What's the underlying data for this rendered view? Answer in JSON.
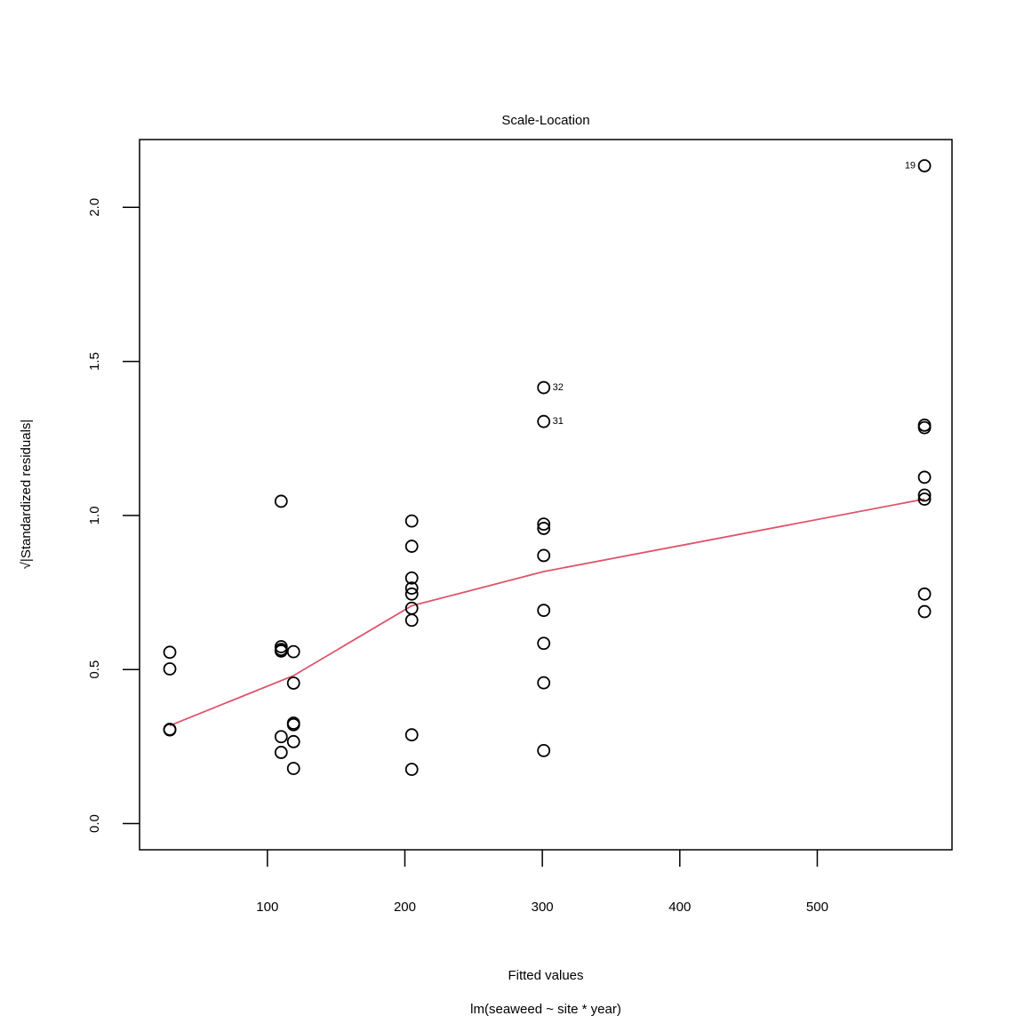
{
  "chart_data": {
    "type": "scatter",
    "title": "Scale-Location",
    "xlabel": "Fitted values",
    "ylabel": "√|Standardized residuals|",
    "ylabel_sqrt": "√",
    "ylabel_text": "|Standardized residuals|",
    "subtitle": "lm(seaweed ~ site * year)",
    "xlim": [
      7,
      598
    ],
    "ylim": [
      -0.085,
      2.22
    ],
    "xticks": [
      100,
      200,
      300,
      400,
      500
    ],
    "yticks": [
      0.0,
      0.5,
      1.0,
      1.5,
      2.0
    ],
    "xtick_labels": [
      "100",
      "200",
      "300",
      "400",
      "500"
    ],
    "ytick_labels": [
      "0.0",
      "0.5",
      "1.0",
      "1.5",
      "2.0"
    ],
    "grid": false,
    "smooth_color": "#DF536B",
    "points": [
      {
        "x": 29,
        "y": 0.556
      },
      {
        "x": 29,
        "y": 0.502
      },
      {
        "x": 29,
        "y": 0.306
      },
      {
        "x": 29,
        "y": 0.304
      },
      {
        "x": 110,
        "y": 1.046
      },
      {
        "x": 110,
        "y": 0.574
      },
      {
        "x": 110,
        "y": 0.565
      },
      {
        "x": 110,
        "y": 0.56
      },
      {
        "x": 110,
        "y": 0.282
      },
      {
        "x": 110,
        "y": 0.231
      },
      {
        "x": 119,
        "y": 0.558
      },
      {
        "x": 119,
        "y": 0.456
      },
      {
        "x": 119,
        "y": 0.326
      },
      {
        "x": 119,
        "y": 0.321
      },
      {
        "x": 119,
        "y": 0.266
      },
      {
        "x": 119,
        "y": 0.179
      },
      {
        "x": 205,
        "y": 0.982
      },
      {
        "x": 205,
        "y": 0.9
      },
      {
        "x": 205,
        "y": 0.797
      },
      {
        "x": 205,
        "y": 0.764
      },
      {
        "x": 205,
        "y": 0.745
      },
      {
        "x": 205,
        "y": 0.699
      },
      {
        "x": 205,
        "y": 0.66
      },
      {
        "x": 205,
        "y": 0.288
      },
      {
        "x": 205,
        "y": 0.176
      },
      {
        "x": 301,
        "y": 1.415,
        "label": "32"
      },
      {
        "x": 301,
        "y": 1.305,
        "label": "31"
      },
      {
        "x": 301,
        "y": 0.972
      },
      {
        "x": 301,
        "y": 0.958
      },
      {
        "x": 301,
        "y": 0.87
      },
      {
        "x": 301,
        "y": 0.692
      },
      {
        "x": 301,
        "y": 0.585
      },
      {
        "x": 301,
        "y": 0.457
      },
      {
        "x": 301,
        "y": 0.237
      },
      {
        "x": 578,
        "y": 2.135,
        "label": "19"
      },
      {
        "x": 578,
        "y": 1.293
      },
      {
        "x": 578,
        "y": 1.285
      },
      {
        "x": 578,
        "y": 1.124
      },
      {
        "x": 578,
        "y": 1.066
      },
      {
        "x": 578,
        "y": 1.053
      },
      {
        "x": 578,
        "y": 0.745
      },
      {
        "x": 578,
        "y": 0.688
      }
    ],
    "smooth_line": [
      {
        "x": 29,
        "y": 0.318
      },
      {
        "x": 119,
        "y": 0.48
      },
      {
        "x": 205,
        "y": 0.707
      },
      {
        "x": 301,
        "y": 0.818
      },
      {
        "x": 578,
        "y": 1.053
      }
    ]
  }
}
